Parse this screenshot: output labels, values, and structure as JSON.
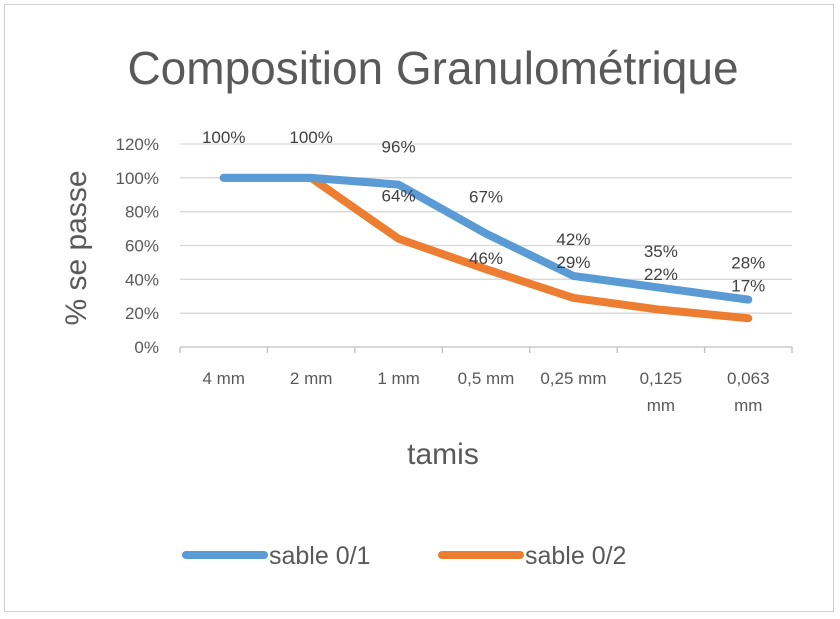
{
  "chart_data": {
    "type": "line",
    "title": "Composition Granulométrique",
    "xlabel": "tamis",
    "ylabel": "% se passe",
    "categories": [
      [
        "4 mm"
      ],
      [
        "2 mm"
      ],
      [
        "1 mm"
      ],
      [
        "0,5 mm"
      ],
      [
        "0,25 mm"
      ],
      [
        "0,125",
        "mm"
      ],
      [
        "0,063",
        "mm"
      ]
    ],
    "yticks": [
      "0%",
      "20%",
      "40%",
      "60%",
      "80%",
      "100%",
      "120%"
    ],
    "ylim": [
      0,
      120
    ],
    "grid": true,
    "legend_position": "bottom",
    "series": [
      {
        "name": "sable 0/1",
        "color": "#5B9BD5",
        "values": [
          100,
          100,
          96,
          67,
          42,
          35,
          28
        ],
        "labels": [
          "100%",
          "100%",
          "96%",
          "67%",
          "42%",
          "35%",
          "28%"
        ]
      },
      {
        "name": "sable 0/2",
        "color": "#ED7D31",
        "values": [
          100,
          100,
          64,
          46,
          29,
          22,
          17
        ],
        "labels": [
          "",
          "",
          "64%",
          "46%",
          "29%",
          "22%",
          "17%"
        ]
      }
    ]
  }
}
